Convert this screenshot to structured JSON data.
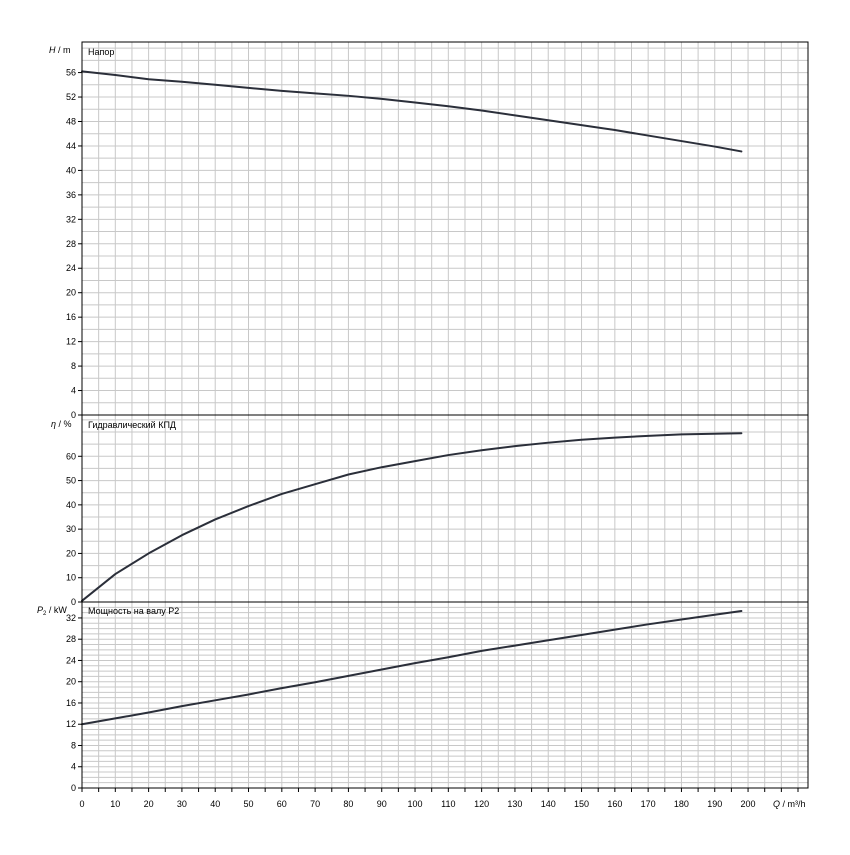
{
  "chart_data": {
    "type": "line",
    "x_axis": {
      "name_symbol": "Q",
      "name_unit": " / m³/h",
      "range": [
        0,
        218
      ],
      "grid_step": 5,
      "label_step": 10,
      "tick_labels": [
        "0",
        "10",
        "20",
        "30",
        "40",
        "50",
        "60",
        "70",
        "80",
        "90",
        "100",
        "110",
        "120",
        "130",
        "140",
        "150",
        "160",
        "170",
        "180",
        "190",
        "200"
      ]
    },
    "panels": [
      {
        "id": "head",
        "title": "Напор",
        "y_symbol": "H",
        "y_unit": " / m",
        "y_range": [
          0,
          61
        ],
        "grid_step": 2,
        "y_tick_labels": [
          "0",
          "4",
          "8",
          "12",
          "16",
          "20",
          "24",
          "28",
          "32",
          "36",
          "40",
          "44",
          "48",
          "52",
          "56"
        ],
        "series": [
          {
            "color": "#2b2f3a",
            "x": [
              0,
              10,
              20,
              30,
              40,
              50,
              60,
              70,
              80,
              90,
              100,
              110,
              120,
              130,
              140,
              150,
              160,
              170,
              180,
              190,
              198
            ],
            "y": [
              56.2,
              55.6,
              54.9,
              54.5,
              54.0,
              53.5,
              53.0,
              52.6,
              52.2,
              51.7,
              51.1,
              50.5,
              49.8,
              49.0,
              48.2,
              47.4,
              46.6,
              45.7,
              44.8,
              43.9,
              43.1
            ]
          }
        ]
      },
      {
        "id": "efficiency",
        "title": "Гидравлический КПД",
        "y_symbol": "η",
        "y_unit": " / %",
        "y_range": [
          0,
          77
        ],
        "grid_step": 5,
        "y_tick_labels": [
          "0",
          "10",
          "20",
          "30",
          "40",
          "50",
          "60"
        ],
        "series": [
          {
            "color": "#2b2f3a",
            "x": [
              0,
              10,
              20,
              30,
              40,
              50,
              60,
              70,
              80,
              90,
              100,
              110,
              120,
              130,
              140,
              150,
              160,
              170,
              180,
              190,
              198
            ],
            "y": [
              0.5,
              11.5,
              20.0,
              27.5,
              34.0,
              39.5,
              44.5,
              48.5,
              52.5,
              55.5,
              58.0,
              60.5,
              62.5,
              64.2,
              65.6,
              66.8,
              67.7,
              68.4,
              69.0,
              69.3,
              69.5
            ]
          }
        ]
      },
      {
        "id": "power",
        "title": "Мощность на валу P2",
        "y_symbol": "P",
        "y_subscript": "2",
        "y_unit": " / kW",
        "y_range": [
          0,
          35
        ],
        "grid_step": 1,
        "y_tick_labels": [
          "0",
          "4",
          "8",
          "12",
          "16",
          "20",
          "24",
          "28",
          "32"
        ],
        "series": [
          {
            "color": "#2b2f3a",
            "x": [
              0,
              10,
              20,
              30,
              40,
              50,
              60,
              70,
              80,
              90,
              100,
              110,
              120,
              130,
              140,
              150,
              160,
              170,
              180,
              190,
              198
            ],
            "y": [
              12.0,
              13.1,
              14.2,
              15.4,
              16.5,
              17.6,
              18.8,
              19.9,
              21.1,
              22.3,
              23.5,
              24.6,
              25.8,
              26.8,
              27.8,
              28.8,
              29.8,
              30.8,
              31.7,
              32.6,
              33.3
            ]
          }
        ]
      }
    ],
    "grid": true,
    "legend": "none"
  }
}
